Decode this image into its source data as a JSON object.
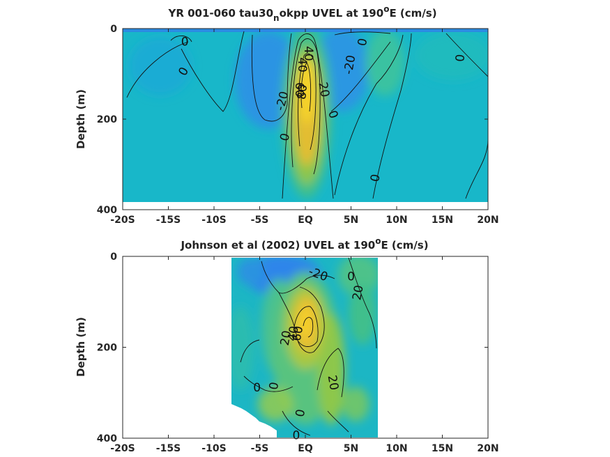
{
  "chart_data": [
    {
      "type": "heatmap",
      "title_main": "YR 001-060 tau30",
      "title_sub": "n",
      "title_rest": "okpp UVEL at 190",
      "title_sup": "o",
      "title_end": "E (cm/s)",
      "ylabel": "Depth (m)",
      "xlim": [
        -20,
        20
      ],
      "ylim": [
        0,
        400
      ],
      "xticks": [
        -20,
        -15,
        -10,
        -5,
        0,
        5,
        10,
        15,
        20
      ],
      "xticklabels": [
        "-20S",
        "-15S",
        "-10S",
        "-5S",
        "EQ",
        "5N",
        "10N",
        "15N",
        "20N"
      ],
      "yticks": [
        0,
        200,
        400
      ],
      "yticklabels": [
        "0",
        "200",
        "400"
      ],
      "data_extent": {
        "x": [
          -20,
          20
        ],
        "depth": [
          0,
          380
        ]
      },
      "contour_labels": [
        {
          "text": "0",
          "x": -13.3,
          "depth": 95,
          "angle": -60
        },
        {
          "text": "0",
          "x": -13.2,
          "depth": 30,
          "angle": 0
        },
        {
          "text": "-20",
          "x": -2.5,
          "depth": 160,
          "angle": -75
        },
        {
          "text": "0",
          "x": -2.2,
          "depth": 240,
          "angle": -75
        },
        {
          "text": "40",
          "x": -0.4,
          "depth": 80,
          "angle": 90
        },
        {
          "text": "40",
          "x": 0.3,
          "depth": 55,
          "angle": 90
        },
        {
          "text": "60",
          "x": -0.7,
          "depth": 135,
          "angle": 90
        },
        {
          "text": "80",
          "x": -0.3,
          "depth": 140,
          "angle": -85
        },
        {
          "text": "20",
          "x": 2.0,
          "depth": 135,
          "angle": 80
        },
        {
          "text": "0",
          "x": 3.0,
          "depth": 190,
          "angle": 70
        },
        {
          "text": "-20",
          "x": 4.9,
          "depth": 80,
          "angle": -80
        },
        {
          "text": "0",
          "x": 6.3,
          "depth": 30,
          "angle": -80
        },
        {
          "text": "0",
          "x": 7.7,
          "depth": 330,
          "angle": -80
        },
        {
          "text": "0",
          "x": 17.0,
          "depth": 65,
          "angle": -85
        }
      ]
    },
    {
      "type": "heatmap",
      "title_main": "Johnson et al (2002) UVEL at 190",
      "title_sup": "o",
      "title_end": "E (cm/s)",
      "ylabel": "Depth (m)",
      "xlim": [
        -20,
        20
      ],
      "ylim": [
        0,
        400
      ],
      "xticks": [
        -20,
        -15,
        -10,
        -5,
        0,
        5,
        10,
        15,
        20
      ],
      "xticklabels": [
        "-20S",
        "-15S",
        "-10S",
        "-5S",
        "EQ",
        "5N",
        "10N",
        "15N",
        "20N"
      ],
      "yticks": [
        0,
        200,
        400
      ],
      "yticklabels": [
        "0",
        "200",
        "400"
      ],
      "data_extent": {
        "x": [
          -8,
          8
        ],
        "depth": [
          0,
          400
        ]
      },
      "contour_labels": [
        {
          "text": "-20",
          "x": 1.4,
          "depth": 40,
          "angle": 20
        },
        {
          "text": "0",
          "x": 5.0,
          "depth": 45,
          "angle": 0
        },
        {
          "text": "20",
          "x": 5.8,
          "depth": 80,
          "angle": -80
        },
        {
          "text": "20",
          "x": -2.1,
          "depth": 180,
          "angle": -80
        },
        {
          "text": "40",
          "x": -1.3,
          "depth": 170,
          "angle": -80
        },
        {
          "text": "60",
          "x": -0.8,
          "depth": 170,
          "angle": -80
        },
        {
          "text": "0",
          "x": -5.3,
          "depth": 290,
          "angle": 0
        },
        {
          "text": "0",
          "x": -3.4,
          "depth": 285,
          "angle": -80
        },
        {
          "text": "20",
          "x": 3.0,
          "depth": 278,
          "angle": 80
        },
        {
          "text": "0",
          "x": -0.5,
          "depth": 345,
          "angle": -80
        },
        {
          "text": "0",
          "x": -1.0,
          "depth": 395,
          "angle": 0
        }
      ]
    }
  ]
}
